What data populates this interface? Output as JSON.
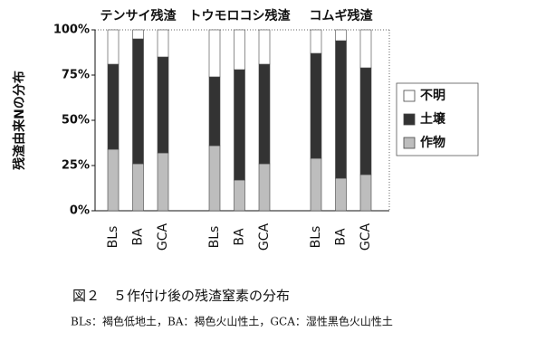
{
  "chart_data": {
    "type": "stacked_bar",
    "y_label": "残渣由来Nの分布",
    "groups": [
      "テンサイ残渣",
      "トウモロコシ残渣",
      "コムギ残渣"
    ],
    "categories": [
      "BLs",
      "BA",
      "GCA",
      "BLs",
      "BA",
      "GCA",
      "BLs",
      "BA",
      "GCA"
    ],
    "series": [
      {
        "name": "作物",
        "color": "#bdbdbd",
        "values": [
          34,
          26,
          32,
          36,
          17,
          26,
          29,
          18,
          20
        ]
      },
      {
        "name": "土壌",
        "color": "#333333",
        "values": [
          47,
          69,
          53,
          38,
          61,
          55,
          58,
          76,
          59
        ]
      },
      {
        "name": "不明",
        "color": "#ffffff",
        "values": [
          19,
          5,
          15,
          26,
          22,
          19,
          13,
          6,
          21
        ]
      }
    ],
    "ylim": [
      0,
      100
    ],
    "yticks": [
      {
        "value": 0,
        "label": "0%"
      },
      {
        "value": 25,
        "label": "25%"
      },
      {
        "value": 50,
        "label": "50%"
      },
      {
        "value": 75,
        "label": "75%"
      },
      {
        "value": 100,
        "label": "100%"
      }
    ],
    "caption": "図２　５作付け後の残渣窒素の分布",
    "note": "BLs：褐色低地土，BA：褐色火山性土，GCA：湿性黒色火山性土"
  }
}
